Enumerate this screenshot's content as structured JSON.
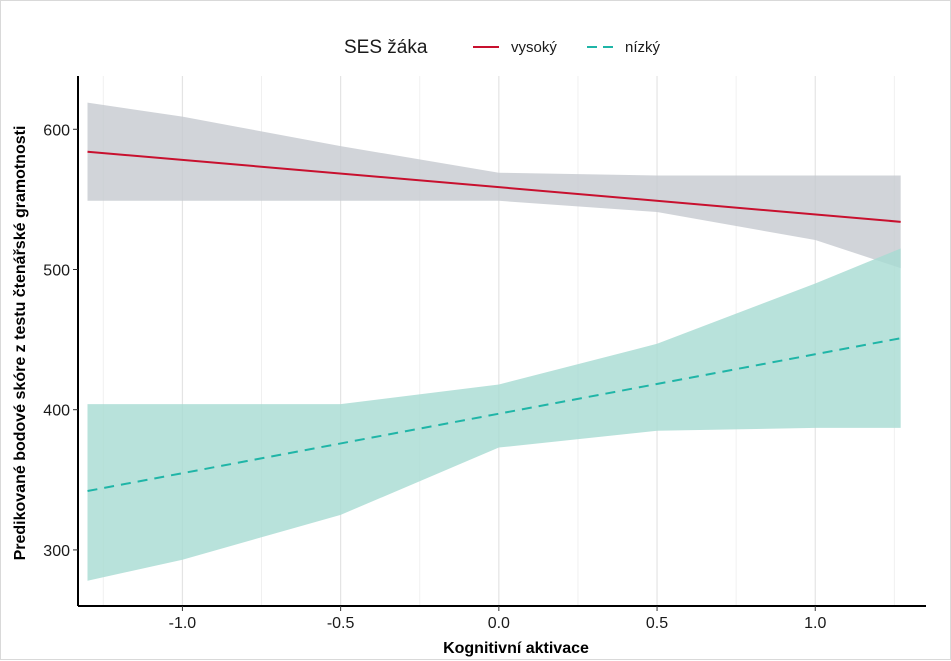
{
  "chart_data": {
    "type": "line",
    "title": "",
    "xlabel": "Kognitivní aktivace",
    "ylabel": "Predikované bodové skóre z testu čtenářské gramotnosti",
    "xlim": [
      -1.33,
      1.35
    ],
    "ylim": [
      260,
      638
    ],
    "x_ticks": [
      -1.0,
      -0.5,
      0.0,
      0.5,
      1.0
    ],
    "x_tick_labels": [
      "-1.0",
      "-0.5",
      "0.0",
      "0.5",
      "1.0"
    ],
    "y_ticks": [
      300,
      400,
      500,
      600
    ],
    "y_tick_labels": [
      "300",
      "400",
      "500",
      "600"
    ],
    "grid": {
      "major_x": true,
      "minor_x": true,
      "y": false
    },
    "legend": {
      "title": "SES žáka",
      "position": "top"
    },
    "series": [
      {
        "name": "vysoký",
        "color": "#c8102e",
        "line_style": "solid",
        "ribbon_color": "#c5c9d0",
        "x": [
          -1.3,
          1.27
        ],
        "y": [
          584,
          534
        ],
        "band": {
          "x": [
            -1.3,
            -1.0,
            -0.5,
            0.0,
            0.5,
            1.0,
            1.27
          ],
          "lower": [
            549,
            549,
            549,
            549,
            541,
            521,
            501
          ],
          "upper": [
            619,
            609,
            588,
            569,
            567,
            567,
            567
          ]
        }
      },
      {
        "name": "nízký",
        "color": "#1fb5a7",
        "line_style": "dashed",
        "ribbon_color": "#a6dbd2",
        "x": [
          -1.3,
          1.27
        ],
        "y": [
          342,
          451
        ],
        "band": {
          "x": [
            -1.3,
            -1.0,
            -0.5,
            0.0,
            0.5,
            1.0,
            1.27
          ],
          "lower": [
            278,
            293,
            325,
            373,
            385,
            387,
            387
          ],
          "upper": [
            404,
            404,
            404,
            418,
            447,
            490,
            515
          ]
        }
      }
    ]
  }
}
